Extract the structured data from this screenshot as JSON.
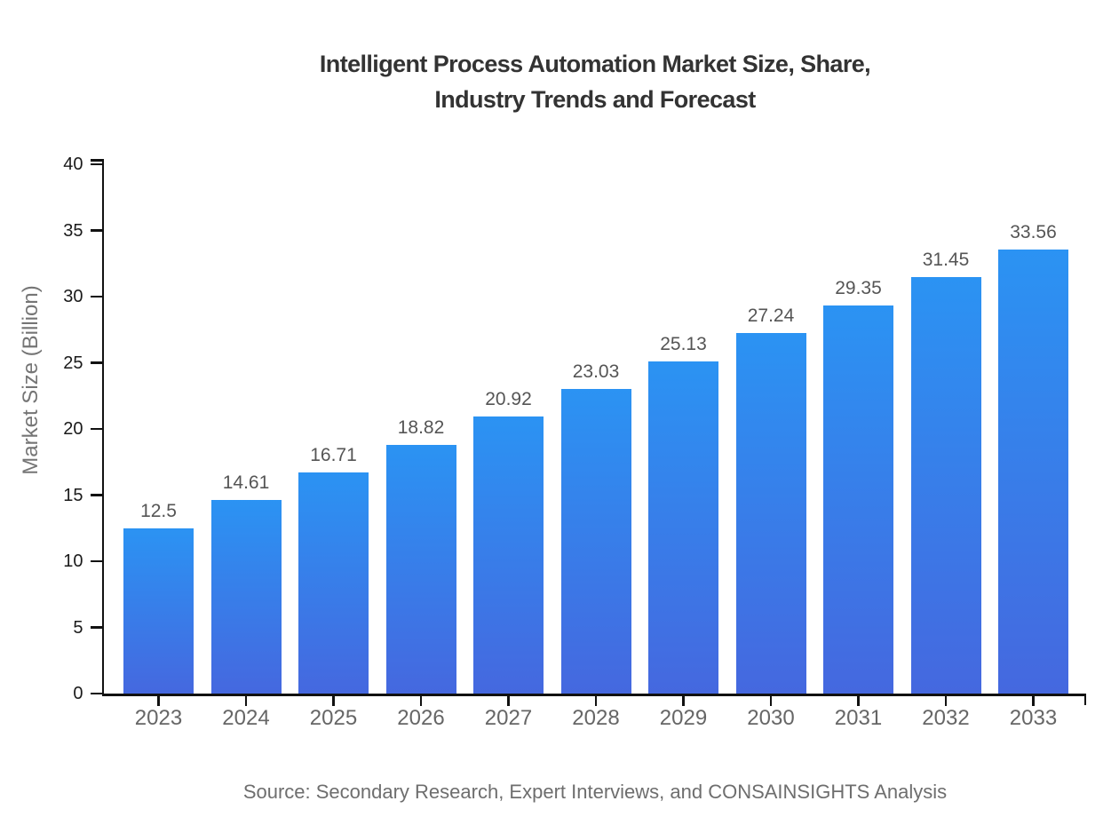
{
  "title": {
    "line1": "Intelligent Process Automation Market Size, Share,",
    "line2": "Industry Trends and Forecast"
  },
  "source_note": "Source: Secondary Research, Expert Interviews, and CONSAINSIGHTS Analysis",
  "chart_data": {
    "type": "bar",
    "title": "Intelligent Process Automation Market Size, Share, Industry Trends and Forecast",
    "categories": [
      "2023",
      "2024",
      "2025",
      "2026",
      "2027",
      "2028",
      "2029",
      "2030",
      "2031",
      "2032",
      "2033"
    ],
    "values": [
      12.5,
      14.61,
      16.71,
      18.82,
      20.92,
      23.03,
      25.13,
      27.24,
      29.35,
      31.45,
      33.56
    ],
    "value_labels": [
      "12.5",
      "14.61",
      "16.71",
      "18.82",
      "20.92",
      "23.03",
      "25.13",
      "27.24",
      "29.35",
      "31.45",
      "33.56"
    ],
    "xlabel": "",
    "ylabel": "Market Size (Billion)",
    "ylim": [
      0,
      40
    ],
    "yticks": [
      0,
      5,
      10,
      15,
      20,
      25,
      30,
      35,
      40
    ],
    "grid": false,
    "legend": "none",
    "bar_gradient_top": "#2B93F3",
    "bar_gradient_bottom": "#4568DF",
    "axis_color": "#111111",
    "title_color": "#333333",
    "ytick_label_color": "#1a1a1a",
    "xtick_label_color": "#666666",
    "value_label_color": "#555555",
    "source_color": "#6e6e6e"
  }
}
